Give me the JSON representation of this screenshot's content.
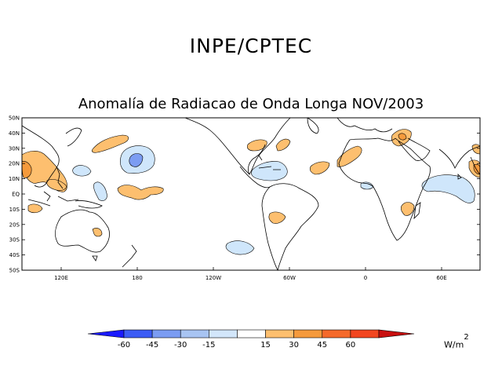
{
  "header": {
    "org_title": "INPE/CPTEC",
    "map_title": "Anomalía de Radiacao de Onda Longa NOV/2003"
  },
  "map": {
    "lat_labels": [
      "50N",
      "40N",
      "30N",
      "20N",
      "10N",
      "EQ",
      "10S",
      "20S",
      "30S",
      "40S",
      "50S"
    ],
    "lon_labels": [
      "120E",
      "180",
      "120W",
      "60W",
      "0",
      "60E"
    ]
  },
  "legend": {
    "values": [
      "-60",
      "-45",
      "-30",
      "-15",
      "15",
      "30",
      "45",
      "60"
    ],
    "units_base": "W/m",
    "units_exp": "2",
    "colors": [
      "#1a1aff",
      "#3c5cf5",
      "#7b9cf2",
      "#a8c4f2",
      "#d2e6fa",
      "#ffffff",
      "#fdbf6f",
      "#f59a3c",
      "#f56a2b",
      "#f24620",
      "#c80f0f"
    ]
  },
  "anomaly_colors": {
    "positive_light": "#fdbf6f",
    "positive_mid": "#f59a3c",
    "negative_light": "#cfe6fb",
    "negative_mid": "#a8c4f2",
    "negative_strong": "#7b9cf2"
  }
}
